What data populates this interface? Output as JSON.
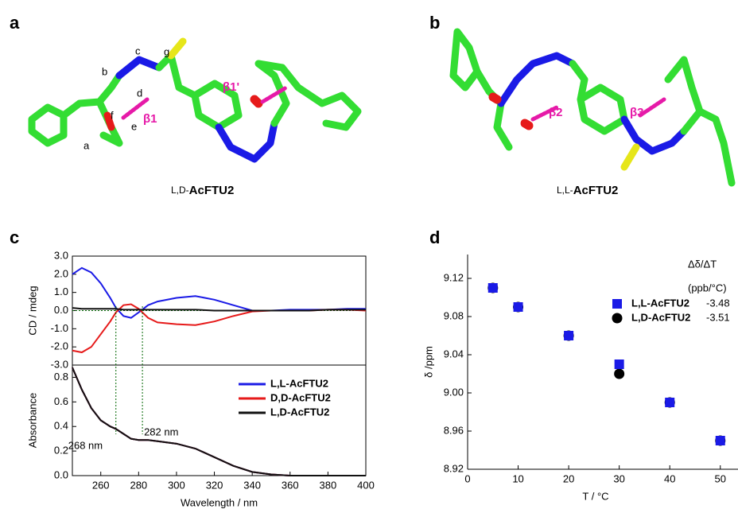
{
  "panels": {
    "a": "a",
    "b": "b",
    "c": "c",
    "d": "d"
  },
  "molecule_a": {
    "caption_prefix": "L,D-",
    "caption_name": "AcFTU2",
    "atoms": [
      "a",
      "b",
      "c",
      "d",
      "e",
      "f",
      "g"
    ],
    "bonds": [
      "β1",
      "β1'"
    ]
  },
  "molecule_b": {
    "caption_prefix": "L,L-",
    "caption_name": "AcFTU2",
    "bonds": [
      "β2",
      "β3"
    ]
  },
  "chart_data": [
    {
      "type": "line",
      "ylabel": "CD / mdeg",
      "x": [
        245,
        250,
        255,
        260,
        265,
        268,
        272,
        276,
        280,
        285,
        290,
        300,
        310,
        320,
        330,
        340,
        350,
        360,
        370,
        380,
        390,
        400
      ],
      "xlim": [
        245,
        400
      ],
      "ylim": [
        -3,
        3
      ],
      "yticks": [
        {
          "value": -3,
          "label": "-3.0"
        },
        {
          "value": -2,
          "label": "-2.0"
        },
        {
          "value": -1,
          "label": "-1.0"
        },
        {
          "value": 0,
          "label": "0.0"
        },
        {
          "value": 1,
          "label": "1.0"
        },
        {
          "value": 2,
          "label": "2.0"
        },
        {
          "value": 3,
          "label": "3.0"
        }
      ],
      "series": [
        {
          "color": "#1a1ae6",
          "values": [
            2.0,
            2.35,
            2.1,
            1.5,
            0.7,
            0.15,
            -0.3,
            -0.4,
            -0.1,
            0.3,
            0.5,
            0.7,
            0.8,
            0.6,
            0.3,
            0.0,
            0.0,
            0.05,
            0.05,
            0.05,
            0.1,
            0.1
          ]
        },
        {
          "color": "#e61a1a",
          "values": [
            -2.2,
            -2.3,
            -2.0,
            -1.3,
            -0.6,
            -0.1,
            0.3,
            0.35,
            0.1,
            -0.4,
            -0.65,
            -0.75,
            -0.8,
            -0.6,
            -0.3,
            -0.05,
            0.0,
            0.0,
            0.0,
            0.05,
            0.05,
            0.0
          ]
        },
        {
          "color": "#111111",
          "values": [
            0.15,
            0.1,
            0.1,
            0.1,
            0.1,
            0.1,
            0.05,
            0.05,
            0.05,
            0.05,
            0.05,
            0.05,
            0.05,
            0.0,
            0.0,
            0.0,
            0.0,
            0.0,
            0.0,
            0.05,
            0.05,
            0.05
          ]
        }
      ]
    },
    {
      "type": "line",
      "ylabel": "Absorbance",
      "xlabel": "Wavelength / nm",
      "x": [
        245,
        250,
        255,
        260,
        265,
        268,
        272,
        276,
        280,
        285,
        290,
        300,
        310,
        320,
        330,
        340,
        350,
        360,
        370,
        380,
        390,
        400
      ],
      "xlim": [
        245,
        400
      ],
      "ylim": [
        0,
        0.9
      ],
      "xticks": [
        260,
        280,
        300,
        320,
        340,
        360,
        380,
        400
      ],
      "yticks": [
        {
          "value": 0,
          "label": "0.0"
        },
        {
          "value": 0.2,
          "label": "0.2"
        },
        {
          "value": 0.4,
          "label": "0.4"
        },
        {
          "value": 0.6,
          "label": "0.6"
        },
        {
          "value": 0.8,
          "label": "0.8"
        }
      ],
      "vlines": [
        {
          "value": 268,
          "label": "268 nm"
        },
        {
          "value": 282,
          "label": "282 nm"
        }
      ],
      "series": [
        {
          "name": "L,L-AcFTU2",
          "color": "#1a1ae6",
          "values": [
            0.88,
            0.7,
            0.55,
            0.45,
            0.4,
            0.38,
            0.34,
            0.3,
            0.29,
            0.29,
            0.28,
            0.26,
            0.22,
            0.15,
            0.08,
            0.03,
            0.01,
            0.0,
            0.0,
            0.0,
            0.0,
            0.0
          ]
        },
        {
          "name": "D,D-AcFTU2",
          "color": "#e61a1a",
          "values": [
            0.88,
            0.7,
            0.55,
            0.45,
            0.4,
            0.38,
            0.34,
            0.3,
            0.29,
            0.29,
            0.28,
            0.26,
            0.22,
            0.15,
            0.08,
            0.03,
            0.01,
            0.0,
            0.0,
            0.0,
            0.0,
            0.0
          ]
        },
        {
          "name": "L,D-AcFTU2",
          "color": "#111111",
          "values": [
            0.88,
            0.7,
            0.55,
            0.45,
            0.4,
            0.38,
            0.34,
            0.3,
            0.29,
            0.29,
            0.28,
            0.26,
            0.22,
            0.15,
            0.08,
            0.03,
            0.01,
            0.0,
            0.0,
            0.0,
            0.0,
            0.0
          ]
        }
      ]
    },
    {
      "type": "scatter",
      "xlabel": "T / °C",
      "ylabel": "δ /ppm",
      "legend_title": "Δδ/ΔT",
      "legend_unit": "(ppb/°C)",
      "xlim": [
        0,
        53.5
      ],
      "ylim": [
        8.92,
        9.145
      ],
      "xticks": [
        0,
        10,
        20,
        30,
        40,
        50
      ],
      "yticks": [
        8.92,
        8.96,
        {
          "value": 9,
          "label": "9.00"
        },
        9.04,
        9.08,
        9.12
      ],
      "series": [
        {
          "name": "L,D-AcFTU2",
          "slope": -3.51,
          "color": "#000000",
          "marker": "circle",
          "x": [
            5,
            10,
            20,
            30,
            40,
            50
          ],
          "values": [
            9.11,
            9.09,
            9.06,
            9.02,
            8.99,
            8.95
          ]
        },
        {
          "name": "L,L-AcFTU2",
          "slope": -3.48,
          "color": "#1a1ae6",
          "marker": "square",
          "x": [
            5,
            10,
            20,
            30,
            40,
            50
          ],
          "values": [
            9.11,
            9.09,
            9.06,
            9.03,
            8.99,
            8.95
          ]
        }
      ]
    }
  ]
}
